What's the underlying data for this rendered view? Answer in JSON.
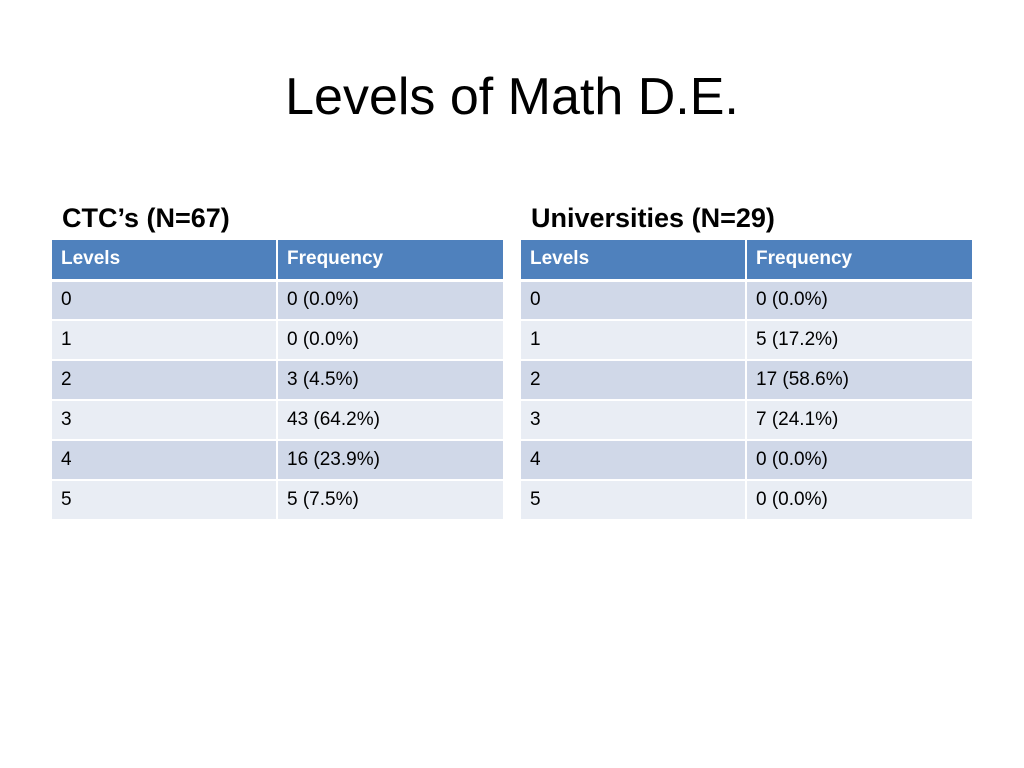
{
  "slide": {
    "title": "Levels of Math D.E."
  },
  "tables": {
    "ctc": {
      "heading": "CTC’s (N=67)",
      "columns": [
        "Levels",
        "Frequency"
      ],
      "rows": [
        [
          "0",
          "0 (0.0%)"
        ],
        [
          "1",
          "0 (0.0%)"
        ],
        [
          "2",
          "3 (4.5%)"
        ],
        [
          "3",
          "43 (64.2%)"
        ],
        [
          "4",
          "16 (23.9%)"
        ],
        [
          "5",
          "5 (7.5%)"
        ]
      ]
    },
    "universities": {
      "heading": "Universities (N=29)",
      "columns": [
        "Levels",
        "Frequency"
      ],
      "rows": [
        [
          "0",
          "0 (0.0%)"
        ],
        [
          "1",
          "5 (17.2%)"
        ],
        [
          "2",
          "17 (58.6%)"
        ],
        [
          "3",
          "7 (24.1%)"
        ],
        [
          "4",
          "0 (0.0%)"
        ],
        [
          "5",
          "0 (0.0%)"
        ]
      ]
    }
  },
  "colors": {
    "header_fill": "#4f81bd",
    "row_band_dark": "#d0d8e8",
    "row_band_light": "#e9edf4"
  }
}
